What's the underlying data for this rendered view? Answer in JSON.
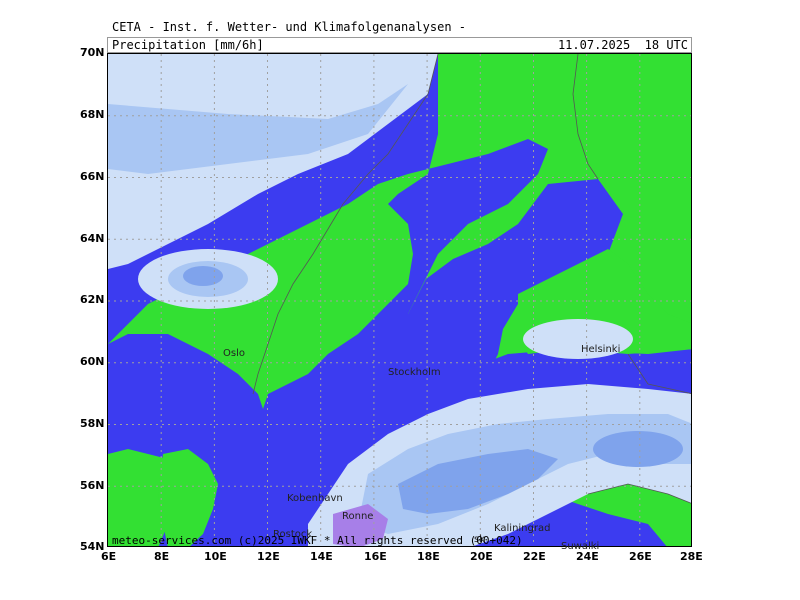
{
  "header": {
    "source": "CETA - Inst. f. Wetter- und Klimafolgenanalysen -",
    "product": "Precipitation [mm/6h]",
    "valid_time": "11.07.2025  18 UTC"
  },
  "copyright": "meteo-services.com (c)2025 IWKF * All rights reserved (00+042)",
  "cities": {
    "oslo": "Oslo",
    "stockholm": "Stockholm",
    "helsinki": "Helsinki",
    "kobenhavn": "Kobenhavn",
    "ronne": "Ronne",
    "rostock": "Rostock",
    "kaliningrad": "Kaliningrad",
    "gdansk": "sk",
    "suwalki": "Suwalki"
  },
  "axes": {
    "lat_ticks": [
      "70N",
      "68N",
      "66N",
      "64N",
      "62N",
      "60N",
      "58N",
      "56N",
      "54N"
    ],
    "lon_ticks": [
      "6E",
      "8E",
      "10E",
      "12E",
      "14E",
      "16E",
      "18E",
      "20E",
      "22E",
      "24E",
      "26E",
      "28E"
    ]
  },
  "colors": {
    "land": "#33e033",
    "sea": "#3c3cf0",
    "precip_light": "#cfe0f8",
    "precip_moderate": "#a9c6f3",
    "precip_heavy": "#7fa3ec",
    "precip_intense": "#a77fe8",
    "coast": "#555555",
    "grid": "#a0a0a0"
  }
}
